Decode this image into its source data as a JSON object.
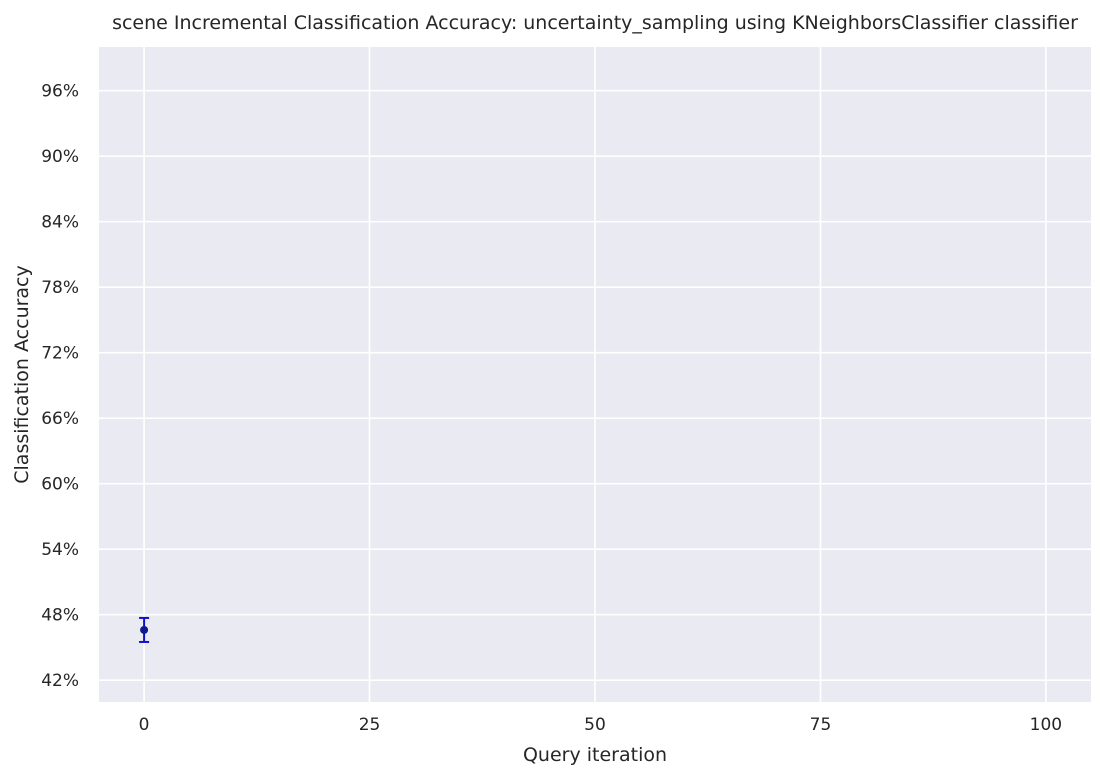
{
  "chart_data": {
    "type": "scatter",
    "title": "scene Incremental Classification Accuracy: uncertainty_sampling using KNeighborsClassifier classifier",
    "xlabel": "Query iteration",
    "ylabel": "Classification Accuracy",
    "xlim": [
      -5,
      105
    ],
    "ylim": [
      0.4,
      1.0
    ],
    "xticks": [
      0,
      25,
      50,
      75,
      100
    ],
    "xtick_labels": [
      "0",
      "25",
      "50",
      "75",
      "100"
    ],
    "yticks": [
      0.42,
      0.48,
      0.54,
      0.6,
      0.66,
      0.72,
      0.78,
      0.84,
      0.9,
      0.96
    ],
    "ytick_labels": [
      "42%",
      "48%",
      "54%",
      "60%",
      "66%",
      "72%",
      "78%",
      "84%",
      "90%",
      "96%"
    ],
    "grid": true,
    "series": [
      {
        "x": [
          0
        ],
        "y": [
          0.466
        ],
        "yerr": [
          0.011
        ],
        "marker_color": "#0b1a8c",
        "errorbar_color": "#1010c8"
      }
    ],
    "colors": {
      "plot_background": "#eaeaf2",
      "grid": "#ffffff"
    }
  }
}
